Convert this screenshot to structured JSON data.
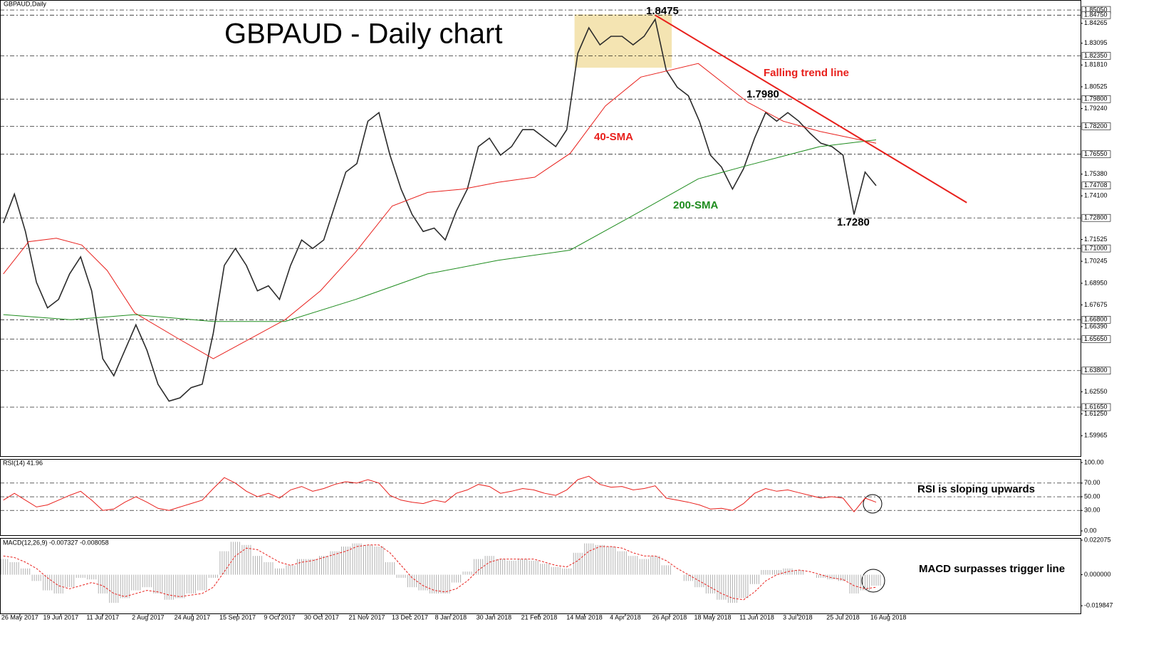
{
  "chart_data": [
    {
      "type": "line",
      "title": "GBPAUD - Daily chart",
      "x": [
        0,
        1,
        2,
        3,
        4,
        5,
        6,
        7,
        8,
        9,
        10,
        11,
        12,
        13,
        14,
        15,
        16,
        17,
        18,
        19,
        20,
        21,
        22,
        23,
        24,
        25,
        26,
        27,
        28,
        29,
        30,
        31,
        32,
        33,
        34,
        35,
        36,
        37,
        38,
        39,
        40,
        41,
        42,
        43,
        44,
        45,
        46,
        47,
        48,
        49,
        50,
        51,
        52,
        53,
        54,
        55,
        56,
        57,
        58,
        59,
        60,
        61,
        62,
        63,
        64,
        65,
        66,
        67,
        68,
        69,
        70,
        71,
        72,
        73,
        74,
        75,
        76,
        77,
        78,
        79
      ],
      "xlim": [
        -0.3,
        97.5
      ],
      "xticks": [
        {
          "value": 1.5,
          "label": "26 May 2017"
        },
        {
          "value": 5.2,
          "label": "19 Jun 2017"
        },
        {
          "value": 9.0,
          "label": "11 Jul 2017"
        },
        {
          "value": 13.1,
          "label": "2 Aug 2017"
        },
        {
          "value": 17.1,
          "label": "24 Aug 2017"
        },
        {
          "value": 21.2,
          "label": "15 Sep 2017"
        },
        {
          "value": 25.0,
          "label": "9 Oct 2017"
        },
        {
          "value": 28.8,
          "label": "30 Oct 2017"
        },
        {
          "value": 32.9,
          "label": "21 Nov 2017"
        },
        {
          "value": 36.8,
          "label": "13 Dec 2017"
        },
        {
          "value": 40.5,
          "label": "8 Jan 2018"
        },
        {
          "value": 44.4,
          "label": "30 Jan 2018"
        },
        {
          "value": 48.5,
          "label": "21 Feb 2018"
        },
        {
          "value": 52.6,
          "label": "14 Mar 2018"
        },
        {
          "value": 56.3,
          "label": "4 Apr 2018"
        },
        {
          "value": 60.3,
          "label": "26 Apr 2018"
        },
        {
          "value": 64.2,
          "label": "18 May 2018"
        },
        {
          "value": 68.2,
          "label": "11 Jun 2018"
        },
        {
          "value": 71.9,
          "label": "3 Jul 2018"
        },
        {
          "value": 76.0,
          "label": "25 Jul 2018"
        },
        {
          "value": 80.1,
          "label": "16 Aug 2018"
        }
      ],
      "ylim": [
        1.5876,
        1.8564
      ],
      "yticks": [
        {
          "value": 1.84265,
          "label": "1.84265"
        },
        {
          "value": 1.83095,
          "label": "1.83095"
        },
        {
          "value": 1.8181,
          "label": "1.81810"
        },
        {
          "value": 1.80525,
          "label": "1.80525"
        },
        {
          "value": 1.7924,
          "label": "1.79240"
        },
        {
          "value": 1.7538,
          "label": "1.75380"
        },
        {
          "value": 1.741,
          "label": "1.74100"
        },
        {
          "value": 1.71525,
          "label": "1.71525"
        },
        {
          "value": 1.70245,
          "label": "1.70245"
        },
        {
          "value": 1.6895,
          "label": "1.68950"
        },
        {
          "value": 1.67675,
          "label": "1.67675"
        },
        {
          "value": 1.6639,
          "label": "1.66390"
        },
        {
          "value": 1.6255,
          "label": "1.62550"
        },
        {
          "value": 1.6125,
          "label": "1.61250"
        },
        {
          "value": 1.59965,
          "label": "1.59965"
        }
      ],
      "key_levels": [
        {
          "value": 1.8505,
          "label": "1.85050"
        },
        {
          "value": 1.8475,
          "label": "1.84750"
        },
        {
          "value": 1.8235,
          "label": "1.82350"
        },
        {
          "value": 1.798,
          "label": "1.79800"
        },
        {
          "value": 1.782,
          "label": "1.78200"
        },
        {
          "value": 1.7655,
          "label": "1.76550"
        },
        {
          "value": 1.728,
          "label": "1.72800"
        },
        {
          "value": 1.71,
          "label": "1.71000"
        },
        {
          "value": 1.668,
          "label": "1.66800"
        },
        {
          "value": 1.6565,
          "label": "1.65650"
        },
        {
          "value": 1.638,
          "label": "1.63800"
        },
        {
          "value": 1.6165,
          "label": "1.61650"
        }
      ],
      "last_price": {
        "value": 1.74708,
        "label": "1.74708"
      },
      "series": [
        {
          "name": "GBPAUD,Daily",
          "color": "#2b2b2b",
          "values": [
            1.725,
            1.742,
            1.72,
            1.69,
            1.675,
            1.68,
            1.695,
            1.705,
            1.685,
            1.645,
            1.635,
            1.65,
            1.665,
            1.65,
            1.63,
            1.62,
            1.622,
            1.628,
            1.63,
            1.66,
            1.7,
            1.71,
            1.7,
            1.685,
            1.688,
            1.68,
            1.7,
            1.715,
            1.71,
            1.715,
            1.735,
            1.755,
            1.76,
            1.785,
            1.79,
            1.765,
            1.745,
            1.73,
            1.72,
            1.722,
            1.715,
            1.732,
            1.745,
            1.77,
            1.775,
            1.765,
            1.77,
            1.78,
            1.78,
            1.775,
            1.77,
            1.78,
            1.825,
            1.84,
            1.83,
            1.835,
            1.835,
            1.83,
            1.835,
            1.845,
            1.815,
            1.805,
            1.8,
            1.785,
            1.765,
            1.758,
            1.745,
            1.757,
            1.775,
            1.79,
            1.785,
            1.79,
            1.785,
            1.778,
            1.772,
            1.77,
            1.765,
            1.73,
            1.755,
            1.747
          ]
        },
        {
          "name": "40-SMA",
          "color": "#e8201c",
          "x": [
            0,
            2.3,
            4.8,
            7.1,
            9.4,
            11.9,
            15.8,
            19.0,
            25.5,
            28.7,
            31.9,
            35.2,
            38.4,
            41.6,
            44.8,
            48.1,
            51.3,
            54.5,
            57.7,
            62.9,
            67.4,
            70.6,
            73.9,
            79.0
          ],
          "values": [
            1.695,
            1.714,
            1.716,
            1.712,
            1.697,
            1.672,
            1.657,
            1.645,
            1.668,
            1.685,
            1.708,
            1.735,
            1.743,
            1.745,
            1.749,
            1.752,
            1.766,
            1.794,
            1.811,
            1.819,
            1.796,
            1.785,
            1.779,
            1.772
          ]
        },
        {
          "name": "200-SMA",
          "color": "#1e8c1e",
          "x": [
            0,
            6.1,
            11.9,
            19.0,
            25.5,
            31.9,
            38.4,
            44.8,
            51.3,
            57.7,
            62.9,
            67.4,
            73.9,
            79.0
          ],
          "values": [
            1.671,
            1.668,
            1.671,
            1.667,
            1.667,
            1.68,
            1.695,
            1.703,
            1.709,
            1.732,
            1.751,
            1.759,
            1.77,
            1.774
          ]
        }
      ],
      "annotations": [
        "1.8475",
        "1.7980",
        "1.7280",
        "Falling trend line"
      ],
      "trend_line": {
        "x": [
          59.0,
          87.2
        ],
        "values": [
          1.8475,
          1.737
        ],
        "color": "#e8201c"
      },
      "highlight_box": {
        "x": [
          51.7,
          60.5
        ],
        "ylim": [
          1.8165,
          1.8479
        ],
        "color": "#f2dfa4"
      }
    },
    {
      "type": "line",
      "title": "RSI(14) 41.96",
      "ylim": [
        -6.2,
        105.2
      ],
      "yticks": [
        {
          "value": 100,
          "label": "100.00"
        },
        {
          "value": 70,
          "label": "70.00"
        },
        {
          "value": 50,
          "label": "50.00"
        },
        {
          "value": 30,
          "label": "30.00"
        },
        {
          "value": 0,
          "label": "0.00"
        }
      ],
      "series": [
        {
          "color": "#e8201c",
          "values": [
            45,
            55,
            45,
            35,
            38,
            45,
            52,
            58,
            45,
            30,
            32,
            42,
            50,
            42,
            33,
            30,
            35,
            40,
            45,
            62,
            78,
            70,
            58,
            50,
            55,
            48,
            60,
            65,
            58,
            62,
            68,
            72,
            70,
            75,
            70,
            52,
            45,
            42,
            40,
            45,
            42,
            55,
            60,
            68,
            65,
            55,
            58,
            62,
            60,
            55,
            52,
            60,
            75,
            80,
            68,
            64,
            65,
            60,
            62,
            66,
            48,
            45,
            42,
            38,
            32,
            33,
            30,
            40,
            55,
            62,
            58,
            60,
            56,
            52,
            48,
            50,
            48,
            28,
            48,
            42
          ]
        }
      ],
      "annotations": [
        "RSI is sloping upwards"
      ]
    },
    {
      "type": "bar",
      "title": "MACD(12,26,9) -0.007327 -0.008058",
      "ylim": [
        -0.02475,
        0.02345
      ],
      "yticks": [
        {
          "value": 0.022075,
          "label": "0.022075"
        },
        {
          "value": 0,
          "label": "0.000000"
        },
        {
          "value": -0.019847,
          "label": "-0.019847"
        }
      ],
      "series": [
        {
          "type": "bar",
          "color": "#b0b0b0",
          "values": [
            0.01,
            0.008,
            0.004,
            -0.004,
            -0.01,
            -0.012,
            -0.008,
            -0.002,
            -0.003,
            -0.012,
            -0.018,
            -0.015,
            -0.01,
            -0.008,
            -0.012,
            -0.016,
            -0.015,
            -0.012,
            -0.01,
            -0.002,
            0.015,
            0.021,
            0.019,
            0.012,
            0.008,
            0.004,
            0.006,
            0.01,
            0.01,
            0.012,
            0.015,
            0.018,
            0.02,
            0.019,
            0.018,
            0.008,
            -0.002,
            -0.008,
            -0.01,
            -0.012,
            -0.012,
            -0.005,
            0.002,
            0.01,
            0.012,
            0.01,
            0.009,
            0.01,
            0.009,
            0.007,
            0.005,
            0.004,
            0.014,
            0.02,
            0.019,
            0.018,
            0.015,
            0.012,
            0.01,
            0.012,
            0.006,
            0,
            -0.004,
            -0.008,
            -0.012,
            -0.016,
            -0.018,
            -0.015,
            -0.006,
            0.003,
            0.003,
            0.004,
            0.003,
            0,
            -0.002,
            -0.003,
            -0.004,
            -0.012,
            -0.01,
            -0.007
          ]
        },
        {
          "type": "line",
          "color": "#e8201c",
          "values": [
            0.012,
            0.011,
            0.008,
            0.004,
            -0.002,
            -0.007,
            -0.009,
            -0.007,
            -0.005,
            -0.007,
            -0.012,
            -0.014,
            -0.012,
            -0.01,
            -0.011,
            -0.013,
            -0.014,
            -0.013,
            -0.012,
            -0.008,
            0.002,
            0.012,
            0.017,
            0.016,
            0.012,
            0.008,
            0.006,
            0.008,
            0.009,
            0.011,
            0.013,
            0.015,
            0.018,
            0.019,
            0.019,
            0.014,
            0.006,
            -0.002,
            -0.007,
            -0.01,
            -0.011,
            -0.009,
            -0.004,
            0.003,
            0.008,
            0.01,
            0.01,
            0.01,
            0.01,
            0.008,
            0.006,
            0.005,
            0.009,
            0.015,
            0.018,
            0.018,
            0.017,
            0.014,
            0.012,
            0.012,
            0.009,
            0.004,
            0,
            -0.004,
            -0.008,
            -0.012,
            -0.015,
            -0.016,
            -0.011,
            -0.004,
            0,
            0.002,
            0.003,
            0.002,
            0,
            -0.002,
            -0.003,
            -0.007,
            -0.009,
            -0.008
          ]
        }
      ],
      "annotations": [
        "MACD surpasses trigger line"
      ]
    }
  ]
}
